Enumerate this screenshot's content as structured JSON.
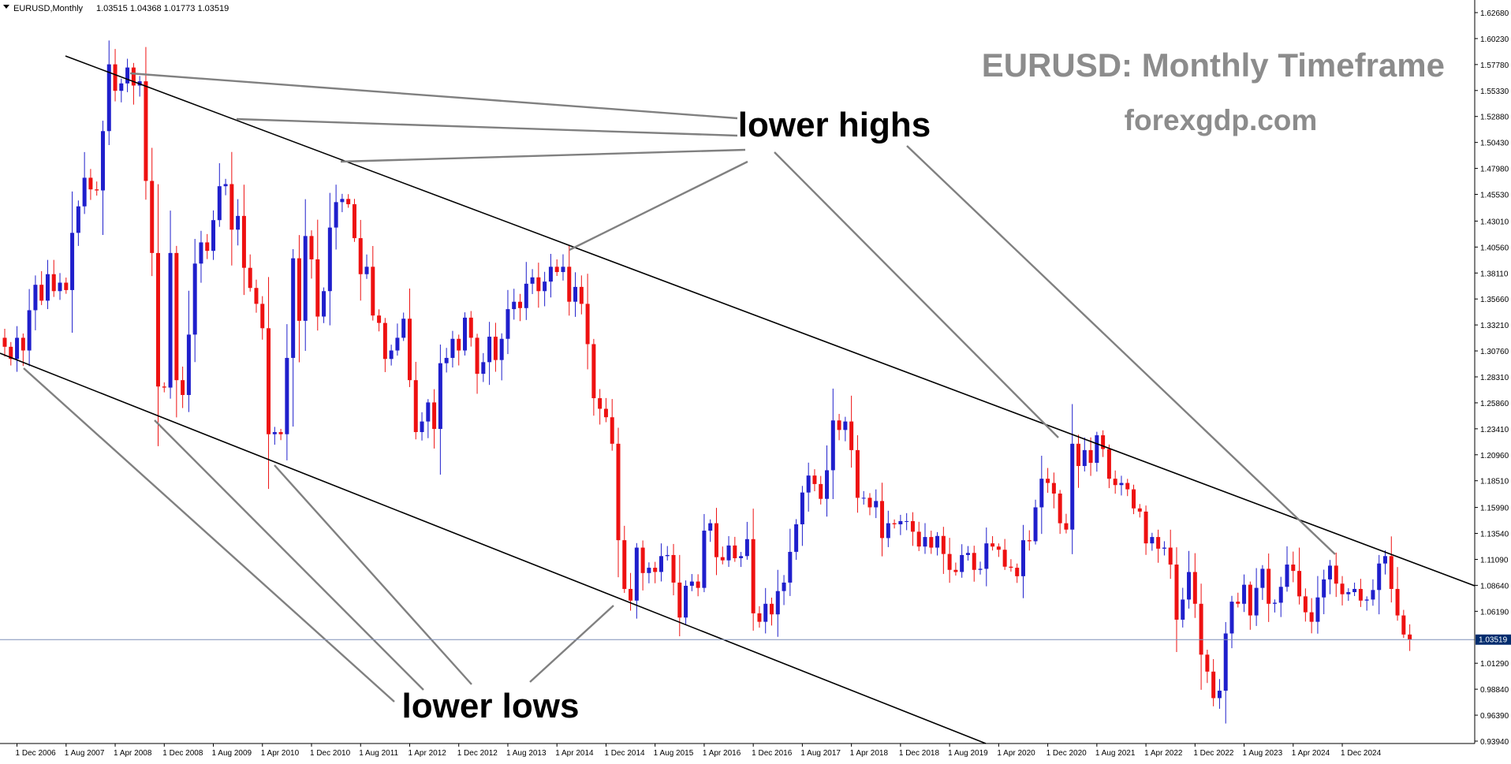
{
  "header": {
    "symbol": "EURUSD,Monthly",
    "ohlc": "1.03515 1.04368 1.01773 1.03519"
  },
  "annotations": {
    "title": "EURUSD: Monthly Timeframe",
    "site": "forexgdp.com",
    "lower_highs": "lower highs",
    "lower_lows": "lower lows"
  },
  "colors": {
    "bull": "#1f1fcc",
    "bear": "#ee1111",
    "wick_bull": "#1f1fcc",
    "wick_bear": "#ee1111",
    "trendline": "#000000",
    "pointer": "#808080",
    "current_price_line": "#7f8fb8",
    "price_tag_bg": "#002c6e"
  },
  "chart_data": {
    "type": "candlestick",
    "symbol": "EURUSD",
    "timeframe": "Monthly",
    "ylim": [
      0.9394,
      1.6268
    ],
    "y_ticks": [
      "1.62680",
      "1.60230",
      "1.57780",
      "1.55330",
      "1.52880",
      "1.50430",
      "1.47980",
      "1.45530",
      "1.43010",
      "1.40560",
      "1.38110",
      "1.35660",
      "1.33210",
      "1.30760",
      "1.28310",
      "1.25860",
      "1.23410",
      "1.20960",
      "1.18510",
      "1.15990",
      "1.13540",
      "1.11090",
      "1.08640",
      "1.06190",
      "1.03519",
      "1.01290",
      "0.98840",
      "0.96390",
      "0.93940"
    ],
    "x_ticks": [
      "1 Dec 2006",
      "1 Aug 2007",
      "1 Apr 2008",
      "1 Dec 2008",
      "1 Aug 2009",
      "1 Apr 2010",
      "1 Dec 2010",
      "1 Aug 2011",
      "1 Apr 2012",
      "1 Dec 2012",
      "1 Aug 2013",
      "1 Apr 2014",
      "1 Dec 2014",
      "1 Aug 2015",
      "1 Apr 2016",
      "1 Dec 2016",
      "1 Aug 2017",
      "1 Apr 2018",
      "1 Dec 2018",
      "1 Aug 2019",
      "1 Apr 2020",
      "1 Dec 2020",
      "1 Aug 2021",
      "1 Apr 2022",
      "1 Dec 2022",
      "1 Aug 2023",
      "1 Apr 2024",
      "1 Dec 2024"
    ],
    "start": "2006-10",
    "current_price": 1.03519,
    "current_price_label": "1.03519",
    "closes": [
      1.3115,
      1.3,
      1.32,
      1.308,
      1.346,
      1.37,
      1.355,
      1.38,
      1.364,
      1.372,
      1.365,
      1.419,
      1.444,
      1.471,
      1.46,
      1.459,
      1.515,
      1.578,
      1.553,
      1.56,
      1.575,
      1.558,
      1.562,
      1.468,
      1.4,
      1.274,
      1.273,
      1.4,
      1.28,
      1.266,
      1.323,
      1.39,
      1.41,
      1.402,
      1.431,
      1.463,
      1.465,
      1.422,
      1.435,
      1.386,
      1.367,
      1.352,
      1.329,
      1.229,
      1.231,
      1.229,
      1.301,
      1.395,
      1.336,
      1.416,
      1.394,
      1.34,
      1.364,
      1.424,
      1.448,
      1.451,
      1.446,
      1.414,
      1.38,
      1.387,
      1.341,
      1.334,
      1.3,
      1.308,
      1.32,
      1.338,
      1.28,
      1.231,
      1.241,
      1.259,
      1.234,
      1.296,
      1.301,
      1.319,
      1.308,
      1.339,
      1.32,
      1.286,
      1.297,
      1.321,
      1.299,
      1.319,
      1.347,
      1.354,
      1.348,
      1.371,
      1.377,
      1.364,
      1.373,
      1.387,
      1.382,
      1.387,
      1.354,
      1.368,
      1.352,
      1.314,
      1.263,
      1.253,
      1.245,
      1.22,
      1.129,
      1.083,
      1.072,
      1.122,
      1.098,
      1.103,
      1.099,
      1.114,
      1.115,
      1.089,
      1.056,
      1.086,
      1.09,
      1.084,
      1.138,
      1.145,
      1.113,
      1.11,
      1.124,
      1.112,
      1.114,
      1.13,
      1.06,
      1.052,
      1.069,
      1.059,
      1.081,
      1.089,
      1.118,
      1.144,
      1.174,
      1.19,
      1.182,
      1.168,
      1.195,
      1.242,
      1.233,
      1.241,
      1.214,
      1.169,
      1.169,
      1.16,
      1.166,
      1.131,
      1.145,
      1.144,
      1.147,
      1.147,
      1.137,
      1.123,
      1.132,
      1.122,
      1.133,
      1.116,
      1.101,
      1.099,
      1.115,
      1.117,
      1.101,
      1.102,
      1.126,
      1.123,
      1.12,
      1.104,
      1.103,
      1.095,
      1.129,
      1.128,
      1.16,
      1.187,
      1.183,
      1.173,
      1.145,
      1.139,
      1.22,
      1.199,
      1.214,
      1.202,
      1.228,
      1.215,
      1.187,
      1.181,
      1.183,
      1.177,
      1.159,
      1.156,
      1.126,
      1.132,
      1.121,
      1.122,
      1.106,
      1.054,
      1.073,
      1.099,
      1.069,
      1.021,
      1.005,
      0.98,
      0.987,
      1.041,
      1.071,
      1.069,
      1.087,
      1.058,
      1.084,
      1.102,
      1.069,
      1.07,
      1.085,
      1.106,
      1.1,
      1.076,
      1.061,
      1.052,
      1.075,
      1.092,
      1.105,
      1.088,
      1.078,
      1.08,
      1.083,
      1.072,
      1.073,
      1.082,
      1.107,
      1.114,
      1.083,
      1.058,
      1.04,
      1.0352
    ],
    "first_open": 1.32
  }
}
